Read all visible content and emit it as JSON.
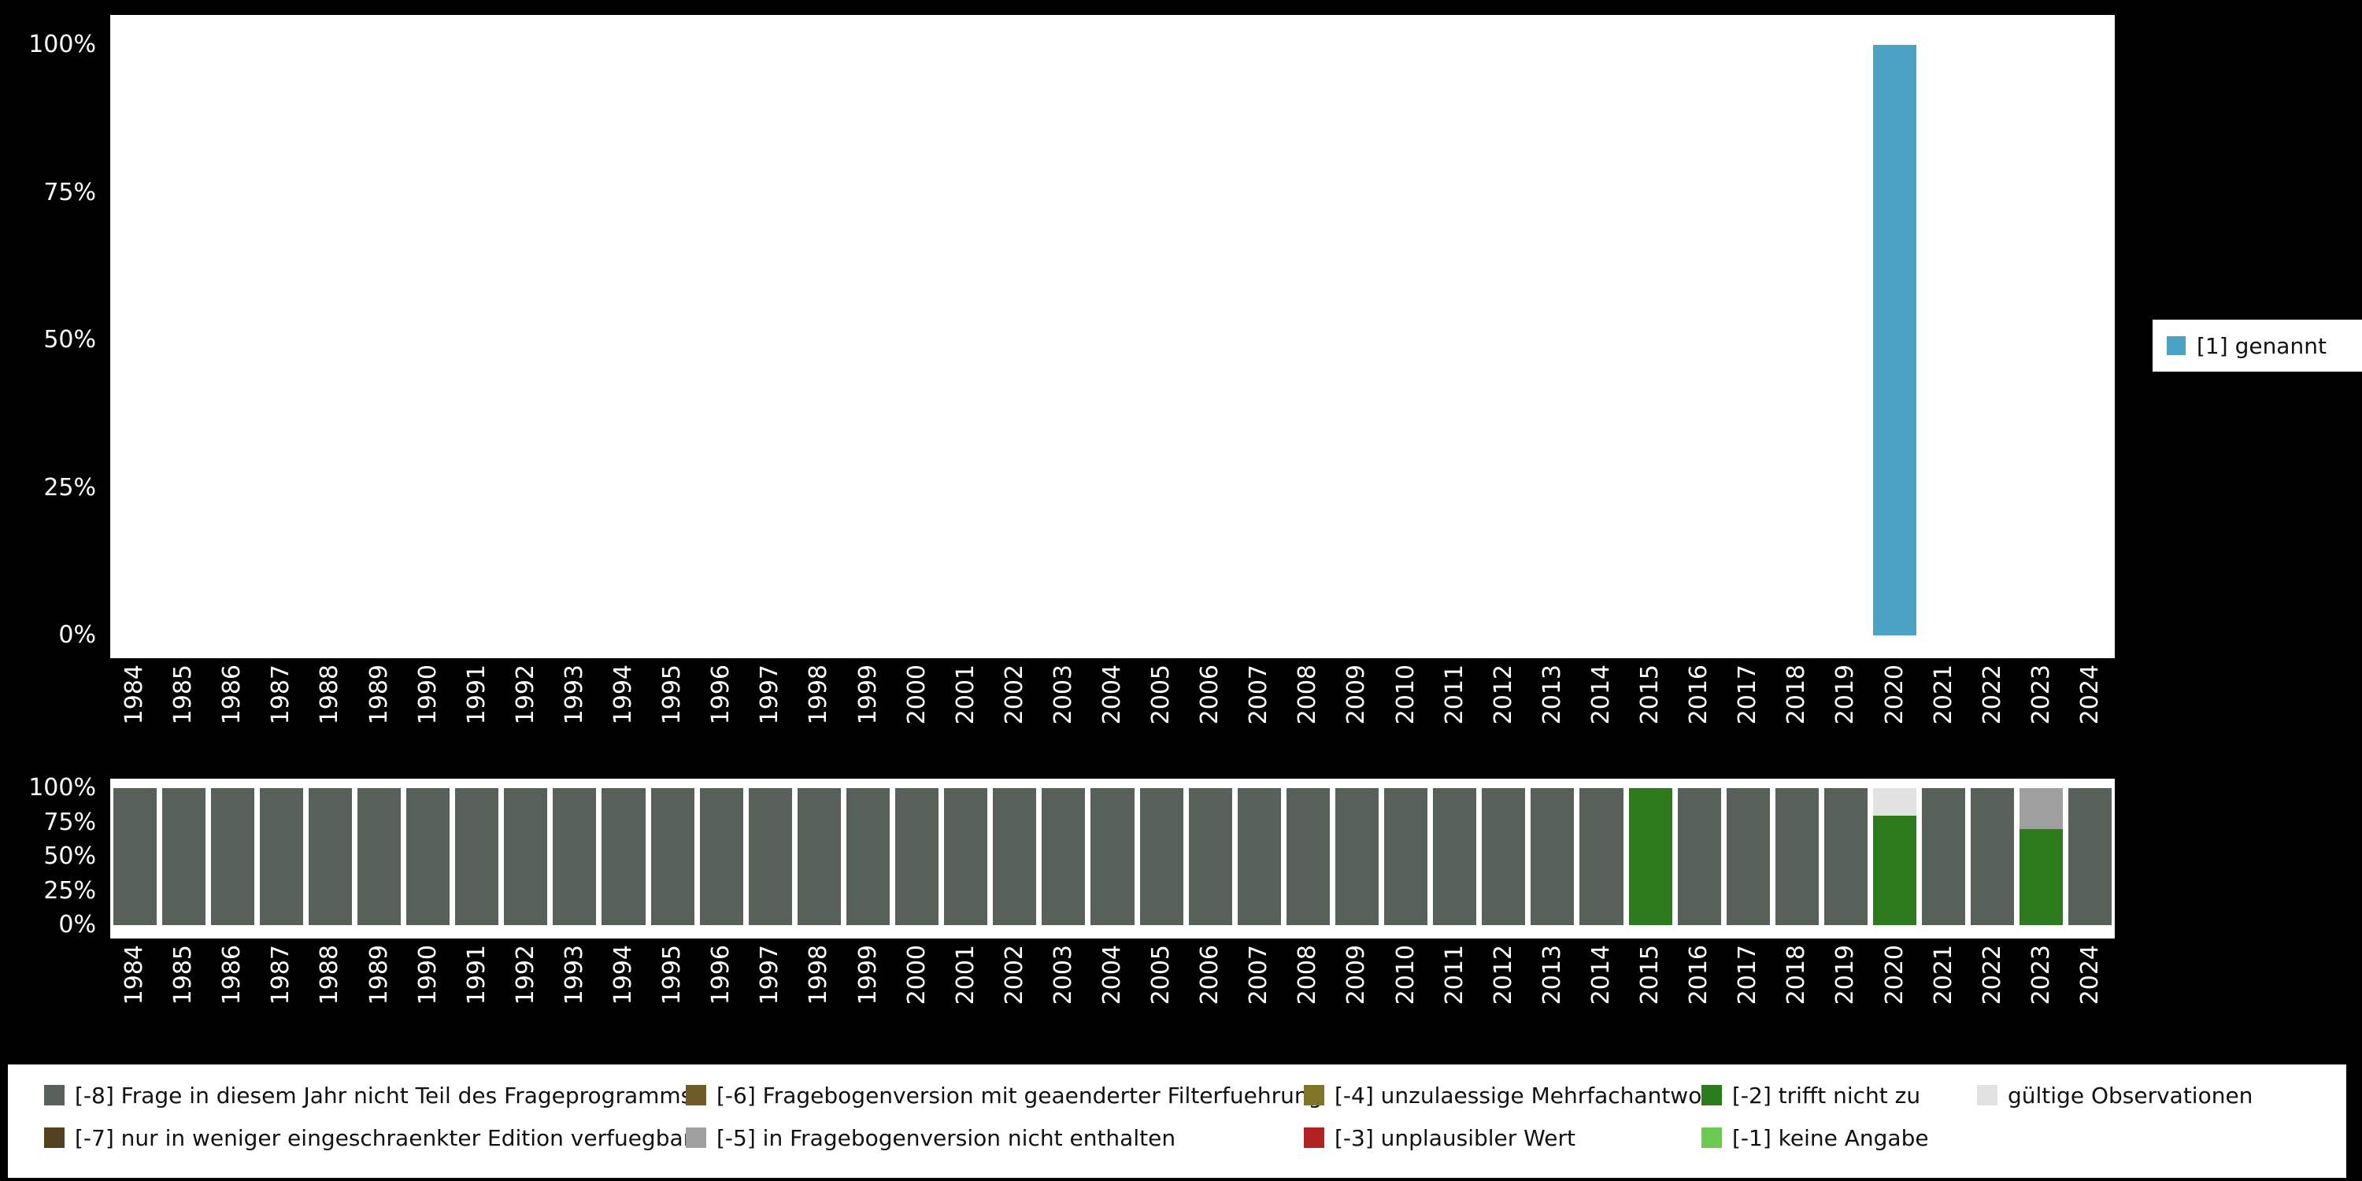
{
  "colors": {
    "background": "#000000",
    "plot_background": "#ffffff",
    "axis_text": "#ffffff",
    "legend_background": "#ffffff",
    "legend_text": "#111111"
  },
  "chart_data": [
    {
      "id": "answer-distribution",
      "type": "bar",
      "stacked": true,
      "unit": "percent",
      "title": "",
      "xlabel": "",
      "ylabel": "",
      "ylim": [
        0,
        100
      ],
      "yticks": [
        "0%",
        "25%",
        "50%",
        "75%",
        "100%"
      ],
      "legend_position": "right",
      "categories": [
        "1984",
        "1985",
        "1986",
        "1987",
        "1988",
        "1989",
        "1990",
        "1991",
        "1992",
        "1993",
        "1994",
        "1995",
        "1996",
        "1997",
        "1998",
        "1999",
        "2000",
        "2001",
        "2002",
        "2003",
        "2004",
        "2005",
        "2006",
        "2007",
        "2008",
        "2009",
        "2010",
        "2011",
        "2012",
        "2013",
        "2014",
        "2015",
        "2016",
        "2017",
        "2018",
        "2019",
        "2020",
        "2021",
        "2022",
        "2023",
        "2024"
      ],
      "series": [
        {
          "name": "[1] genannt",
          "color": "#4aa3c4",
          "values": [
            0,
            0,
            0,
            0,
            0,
            0,
            0,
            0,
            0,
            0,
            0,
            0,
            0,
            0,
            0,
            0,
            0,
            0,
            0,
            0,
            0,
            0,
            0,
            0,
            0,
            0,
            0,
            0,
            0,
            0,
            0,
            0,
            0,
            0,
            0,
            0,
            100,
            0,
            0,
            0,
            0
          ]
        }
      ]
    },
    {
      "id": "missing-values-distribution",
      "type": "bar",
      "stacked": true,
      "unit": "percent",
      "title": "",
      "xlabel": "",
      "ylabel": "",
      "ylim": [
        0,
        100
      ],
      "yticks": [
        "0%",
        "25%",
        "50%",
        "75%",
        "100%"
      ],
      "legend_position": "bottom",
      "categories": [
        "1984",
        "1985",
        "1986",
        "1987",
        "1988",
        "1989",
        "1990",
        "1991",
        "1992",
        "1993",
        "1994",
        "1995",
        "1996",
        "1997",
        "1998",
        "1999",
        "2000",
        "2001",
        "2002",
        "2003",
        "2004",
        "2005",
        "2006",
        "2007",
        "2008",
        "2009",
        "2010",
        "2011",
        "2012",
        "2013",
        "2014",
        "2015",
        "2016",
        "2017",
        "2018",
        "2019",
        "2020",
        "2021",
        "2022",
        "2023",
        "2024"
      ],
      "series": [
        {
          "name": "[-8] Frage in diesem Jahr nicht Teil des Frageprogramms",
          "color": "#586159",
          "values": [
            100,
            100,
            100,
            100,
            100,
            100,
            100,
            100,
            100,
            100,
            100,
            100,
            100,
            100,
            100,
            100,
            100,
            100,
            100,
            100,
            100,
            100,
            100,
            100,
            100,
            100,
            100,
            100,
            100,
            100,
            100,
            0,
            100,
            100,
            100,
            100,
            0,
            100,
            100,
            0,
            100
          ]
        },
        {
          "name": "[-2] trifft nicht zu",
          "color": "#2c7c1e",
          "values": [
            0,
            0,
            0,
            0,
            0,
            0,
            0,
            0,
            0,
            0,
            0,
            0,
            0,
            0,
            0,
            0,
            0,
            0,
            0,
            0,
            0,
            0,
            0,
            0,
            0,
            0,
            0,
            0,
            0,
            0,
            0,
            100,
            0,
            0,
            0,
            0,
            80,
            0,
            0,
            70,
            0
          ]
        },
        {
          "name": "[-5] in Fragebogenversion nicht enthalten",
          "color": "#9f9f9f",
          "values": [
            0,
            0,
            0,
            0,
            0,
            0,
            0,
            0,
            0,
            0,
            0,
            0,
            0,
            0,
            0,
            0,
            0,
            0,
            0,
            0,
            0,
            0,
            0,
            0,
            0,
            0,
            0,
            0,
            0,
            0,
            0,
            0,
            0,
            0,
            0,
            0,
            0,
            0,
            0,
            30,
            0
          ]
        },
        {
          "name": "gültige Observationen",
          "color": "#e2e2e2",
          "values": [
            0,
            0,
            0,
            0,
            0,
            0,
            0,
            0,
            0,
            0,
            0,
            0,
            0,
            0,
            0,
            0,
            0,
            0,
            0,
            0,
            0,
            0,
            0,
            0,
            0,
            0,
            0,
            0,
            0,
            0,
            0,
            0,
            0,
            0,
            0,
            0,
            20,
            0,
            0,
            0,
            0
          ]
        }
      ]
    }
  ],
  "legend_columns": [
    [
      {
        "label": "[-8] Frage in diesem Jahr nicht Teil des Frageprogramms",
        "color": "#586159"
      },
      {
        "label": "[-7] nur in weniger eingeschraenkter Edition verfuegbar",
        "color": "#53401f"
      }
    ],
    [
      {
        "label": "[-6] Fragebogenversion mit geaenderter Filterfuehrung",
        "color": "#6f5b28"
      },
      {
        "label": "[-5] in Fragebogenversion nicht enthalten",
        "color": "#9f9f9f"
      }
    ],
    [
      {
        "label": "[-4] unzulaessige Mehrfachantwort",
        "color": "#7e7526"
      },
      {
        "label": "[-3] unplausibler Wert",
        "color": "#b22222"
      }
    ],
    [
      {
        "label": "[-2] trifft nicht zu",
        "color": "#2c7c1e"
      },
      {
        "label": "[-1] keine Angabe",
        "color": "#6bc850"
      }
    ],
    [
      {
        "label": "gültige Observationen",
        "color": "#e2e2e2"
      }
    ]
  ]
}
